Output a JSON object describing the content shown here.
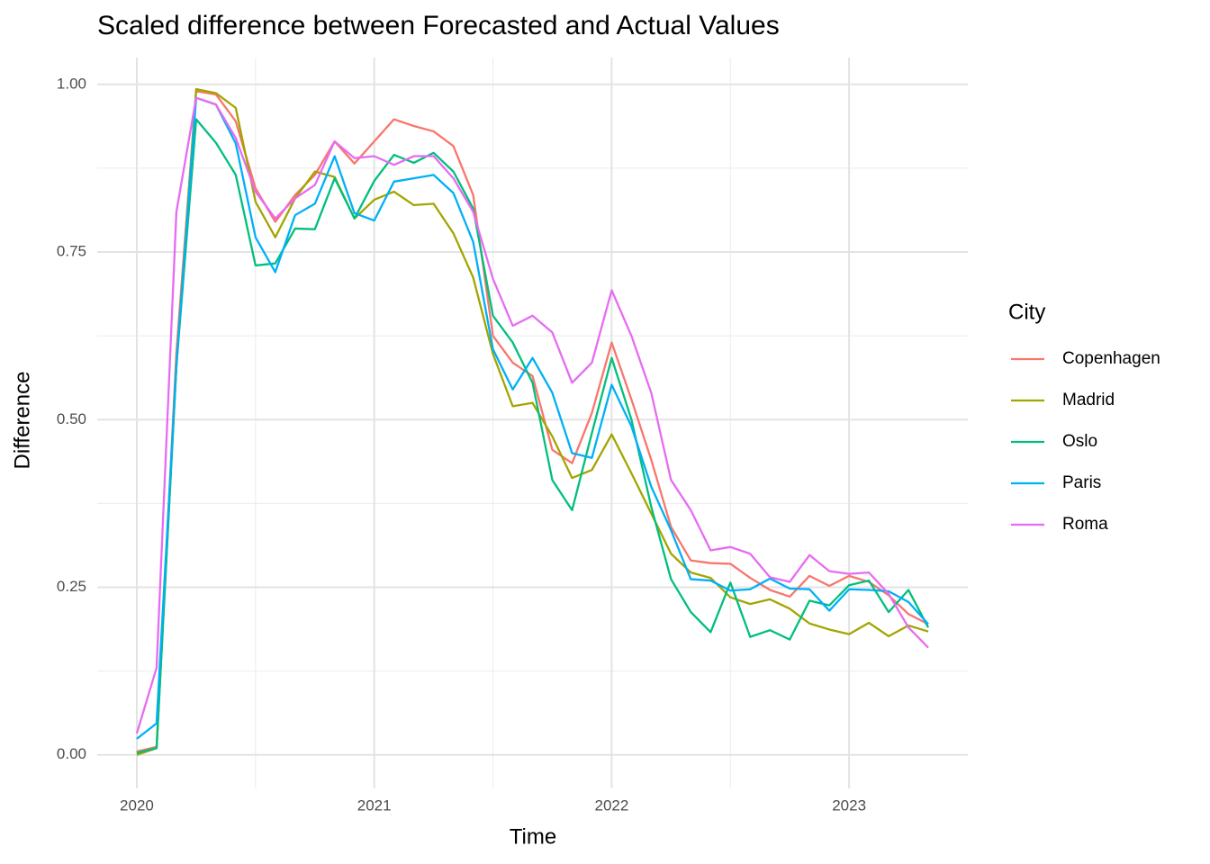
{
  "chart_data": {
    "type": "line",
    "title": "Scaled difference between Forecasted and Actual Values",
    "x_label": "Time",
    "y_label": "Difference",
    "legend_title": "City",
    "x": [
      2020,
      2020.0833,
      2020.1667,
      2020.25,
      2020.3333,
      2020.4167,
      2020.5,
      2020.5833,
      2020.6667,
      2020.75,
      2020.8333,
      2020.9167,
      2021,
      2021.0833,
      2021.1667,
      2021.25,
      2021.3333,
      2021.4167,
      2021.5,
      2021.5833,
      2021.6667,
      2021.75,
      2021.8333,
      2021.9167,
      2022,
      2022.0833,
      2022.1667,
      2022.25,
      2022.3333,
      2022.4167,
      2022.5,
      2022.5833,
      2022.6667,
      2022.75,
      2022.8333,
      2022.9167,
      2023,
      2023.0833,
      2023.1667,
      2023.25,
      2023.3333
    ],
    "series": [
      {
        "name": "Copenhagen",
        "color": "#F8766D",
        "values": [
          0.005,
          0.012,
          0.6,
          0.99,
          0.985,
          0.945,
          0.845,
          0.795,
          0.835,
          0.865,
          0.915,
          0.882,
          0.915,
          0.948,
          0.938,
          0.93,
          0.908,
          0.835,
          0.625,
          0.585,
          0.565,
          0.455,
          0.435,
          0.51,
          0.615,
          0.53,
          0.44,
          0.34,
          0.29,
          0.286,
          0.285,
          0.264,
          0.246,
          0.236,
          0.267,
          0.252,
          0.267,
          0.258,
          0.238,
          0.21,
          0.195
        ]
      },
      {
        "name": "Madrid",
        "color": "#A3A500",
        "values": [
          0.0,
          0.01,
          0.58,
          0.993,
          0.987,
          0.965,
          0.825,
          0.772,
          0.83,
          0.87,
          0.862,
          0.8,
          0.828,
          0.84,
          0.82,
          0.822,
          0.778,
          0.712,
          0.598,
          0.52,
          0.525,
          0.475,
          0.413,
          0.425,
          0.478,
          0.42,
          0.36,
          0.3,
          0.272,
          0.264,
          0.235,
          0.225,
          0.232,
          0.218,
          0.196,
          0.187,
          0.18,
          0.197,
          0.177,
          0.193,
          0.184
        ]
      },
      {
        "name": "Oslo",
        "color": "#00BF7D",
        "values": [
          0.003,
          0.01,
          0.58,
          0.948,
          0.913,
          0.865,
          0.73,
          0.733,
          0.785,
          0.784,
          0.86,
          0.8,
          0.856,
          0.895,
          0.883,
          0.898,
          0.87,
          0.815,
          0.655,
          0.615,
          0.555,
          0.41,
          0.365,
          0.48,
          0.592,
          0.5,
          0.37,
          0.262,
          0.213,
          0.183,
          0.257,
          0.176,
          0.186,
          0.172,
          0.23,
          0.223,
          0.253,
          0.26,
          0.213,
          0.246,
          0.19
        ]
      },
      {
        "name": "Paris",
        "color": "#00B0F6",
        "values": [
          0.024,
          0.047,
          0.58,
          0.98,
          0.97,
          0.912,
          0.772,
          0.72,
          0.805,
          0.822,
          0.893,
          0.808,
          0.797,
          0.855,
          0.86,
          0.865,
          0.838,
          0.765,
          0.605,
          0.545,
          0.592,
          0.54,
          0.45,
          0.443,
          0.552,
          0.49,
          0.4,
          0.335,
          0.262,
          0.26,
          0.245,
          0.247,
          0.263,
          0.248,
          0.247,
          0.215,
          0.247,
          0.246,
          0.244,
          0.228,
          0.195
        ]
      },
      {
        "name": "Roma",
        "color": "#E76BF3",
        "values": [
          0.032,
          0.13,
          0.81,
          0.98,
          0.97,
          0.92,
          0.84,
          0.8,
          0.83,
          0.85,
          0.915,
          0.89,
          0.893,
          0.88,
          0.893,
          0.893,
          0.86,
          0.81,
          0.71,
          0.64,
          0.655,
          0.63,
          0.555,
          0.585,
          0.693,
          0.625,
          0.54,
          0.41,
          0.365,
          0.305,
          0.31,
          0.3,
          0.265,
          0.258,
          0.298,
          0.274,
          0.27,
          0.272,
          0.24,
          0.19,
          0.16
        ]
      }
    ],
    "xlim": [
      2019.8333,
      2023.5
    ],
    "xticks": [
      2020,
      2021,
      2022,
      2023
    ],
    "x_minor_ticks": [
      2020.5,
      2021.5,
      2022.5
    ],
    "ylim": [
      -0.05,
      1.04
    ],
    "yticks": [
      {
        "value": 0,
        "label": "0.00"
      },
      {
        "value": 0.25,
        "label": "0.25"
      },
      {
        "value": 0.5,
        "label": "0.50"
      },
      {
        "value": 0.75,
        "label": "0.75"
      },
      {
        "value": 1,
        "label": "1.00"
      }
    ],
    "y_minor_ticks": [
      0.125,
      0.375,
      0.625,
      0.875
    ],
    "grid": true,
    "legend_position": "right"
  }
}
